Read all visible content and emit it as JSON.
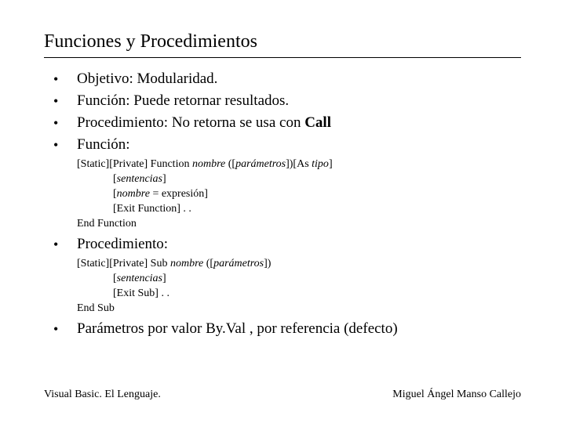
{
  "title": "Funciones y Procedimientos",
  "bullets": {
    "b1": "Objetivo:  Modularidad.",
    "b2": "Función: Puede retornar resultados.",
    "b3_pre": "Procedimiento: No retorna se usa con ",
    "b3_bold": "Call",
    "b4": "Función:",
    "b5": "Procedimiento:",
    "b6": "Parámetros por valor By.Val , por referencia (defecto)"
  },
  "func_code": {
    "l1_a": "[Static][Private] Function ",
    "l1_i1": "nombre",
    "l1_b": " ([",
    "l1_i2": "parámetros",
    "l1_c": "])[As ",
    "l1_i3": "tipo",
    "l1_d": "]",
    "l2_a": "[",
    "l2_i": "sentencias",
    "l2_b": "]",
    "l3_a": "[",
    "l3_i": "nombre",
    "l3_b": " = expresión]",
    "l4": "[Exit Function] . .",
    "l5": "End Function"
  },
  "proc_code": {
    "l1_a": "[Static][Private] Sub ",
    "l1_i1": "nombre",
    "l1_b": " ([",
    "l1_i2": "parámetros",
    "l1_c": "])",
    "l2_a": "[",
    "l2_i": "sentencias",
    "l2_b": "]",
    "l3": "[Exit Sub] . .",
    "l4": "End Sub"
  },
  "footer": {
    "left": "Visual Basic. El Lenguaje.",
    "right": "Miguel Ángel Manso Callejo"
  },
  "glyph": {
    "bullet": "•"
  }
}
